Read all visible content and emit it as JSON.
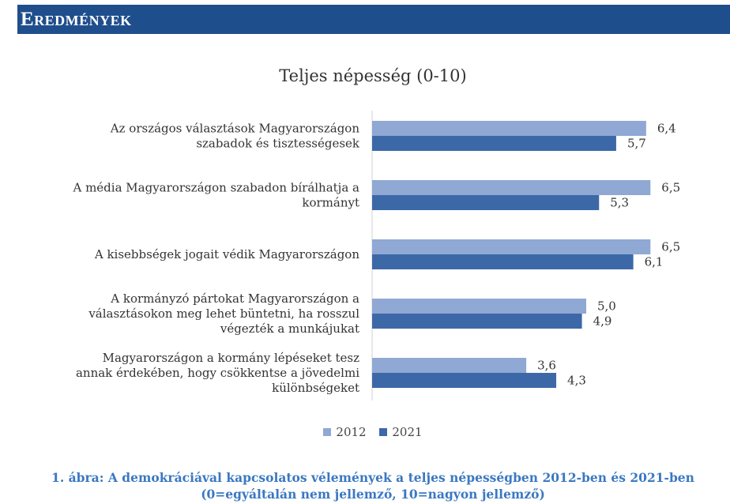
{
  "header": {
    "title": "Eredmények"
  },
  "chart_data": {
    "type": "bar",
    "orientation": "horizontal",
    "title": "Teljes népesség (0-10)",
    "categories": [
      [
        "Az országos választások Magyarországon",
        "szabadok és tisztességesek"
      ],
      [
        "A média Magyarországon szabadon bírálhatja a",
        "kormányt"
      ],
      [
        "A kisebbségek jogait védik Magyarországon"
      ],
      [
        "A kormányzó pártokat Magyarországon a",
        "választásokon meg lehet büntetni, ha rosszul",
        "végezték a munkájukat"
      ],
      [
        "Magyarországon a kormány lépéseket tesz",
        "annak érdekében, hogy csökkentse a jövedelmi",
        "különbségeket"
      ]
    ],
    "series": [
      {
        "name": "2012",
        "color": "#8fa8d4",
        "values": [
          6.4,
          6.5,
          6.5,
          5.0,
          3.6
        ],
        "labels": [
          "6,4",
          "6,5",
          "6,5",
          "5,0",
          "3,6"
        ]
      },
      {
        "name": "2021",
        "color": "#3c68a8",
        "values": [
          5.7,
          5.3,
          6.1,
          4.9,
          4.3
        ],
        "labels": [
          "5,7",
          "5,3",
          "6,1",
          "4,9",
          "4,3"
        ]
      }
    ],
    "xlim": [
      0,
      8
    ],
    "grid": false,
    "legend": "bottom"
  },
  "caption": {
    "line1": "1. ábra: A demokráciával kapcsolatos vélemények a teljes népességben 2012-ben és 2021-ben",
    "line2": "(0=egyáltalán nem jellemző, 10=nagyon jellemző)"
  }
}
